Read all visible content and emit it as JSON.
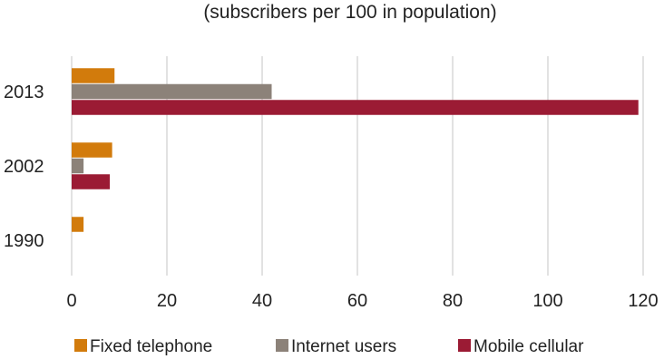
{
  "chart_data": {
    "type": "bar",
    "orientation": "horizontal",
    "subtitle": "(subscribers per 100 in population)",
    "categories": [
      "2013",
      "2002",
      "1990"
    ],
    "series": [
      {
        "name": "Fixed telephone",
        "color": "#D27B0C",
        "values": [
          9,
          8.5,
          2.5
        ]
      },
      {
        "name": "Internet users",
        "color": "#8C8279",
        "values": [
          42,
          2.5,
          0
        ]
      },
      {
        "name": "Mobile cellular",
        "color": "#9B1B34",
        "values": [
          119,
          8,
          0
        ]
      }
    ],
    "xlim": [
      0,
      120
    ],
    "xticks": [
      "0",
      "20",
      "40",
      "60",
      "80",
      "100",
      "120"
    ],
    "grid": true,
    "legend_position": "bottom"
  }
}
